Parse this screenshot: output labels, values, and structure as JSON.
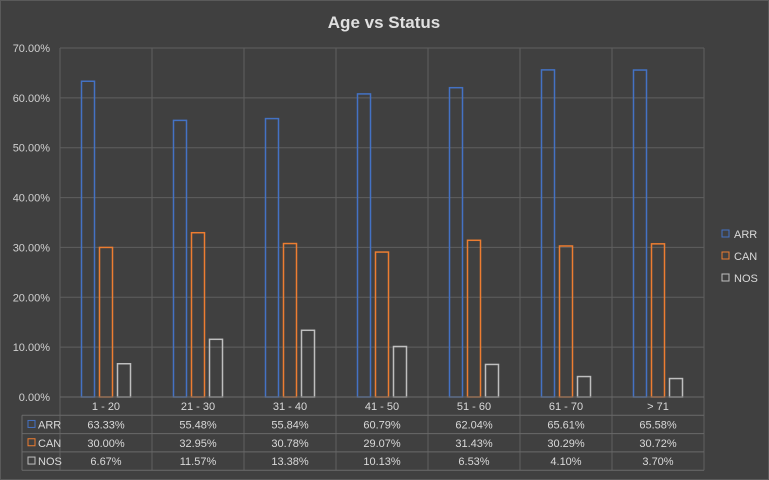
{
  "chart_data": {
    "type": "bar",
    "title": "Age vs Status",
    "categories": [
      "1 - 20",
      "21 - 30",
      "31 - 40",
      "41 - 50",
      "51 - 60",
      "61 - 70",
      "> 71"
    ],
    "series": [
      {
        "name": "ARR",
        "color": "#4472c4",
        "values": [
          63.33,
          55.48,
          55.84,
          60.79,
          62.04,
          65.61,
          65.58
        ],
        "labels": [
          "63.33%",
          "55.48%",
          "55.84%",
          "60.79%",
          "62.04%",
          "65.61%",
          "65.58%"
        ]
      },
      {
        "name": "CAN",
        "color": "#ed7d31",
        "values": [
          30.0,
          32.95,
          30.78,
          29.07,
          31.43,
          30.29,
          30.72
        ],
        "labels": [
          "30.00%",
          "32.95%",
          "30.78%",
          "29.07%",
          "31.43%",
          "30.29%",
          "30.72%"
        ]
      },
      {
        "name": "NOS",
        "color": "#bfbfbf",
        "values": [
          6.67,
          11.57,
          13.38,
          10.13,
          6.53,
          4.1,
          3.7
        ],
        "labels": [
          "6.67%",
          "11.57%",
          "13.38%",
          "10.13%",
          "6.53%",
          "4.10%",
          "3.70%"
        ]
      }
    ],
    "ylim": [
      0,
      70
    ],
    "yticks": [
      "0.00%",
      "10.00%",
      "20.00%",
      "30.00%",
      "40.00%",
      "50.00%",
      "60.00%",
      "70.00%"
    ],
    "grid": true,
    "legend": "right",
    "data_table": true
  }
}
